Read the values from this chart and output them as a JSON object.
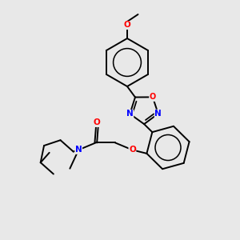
{
  "background_color": "#e8e8e8",
  "bond_color": "#000000",
  "N_color": "#0000ff",
  "O_color": "#ff0000",
  "figsize": [
    3.0,
    3.0
  ],
  "dpi": 100,
  "xlim": [
    0,
    10
  ],
  "ylim": [
    0,
    10
  ],
  "bond_lw": 1.4,
  "font_size": 7.5
}
